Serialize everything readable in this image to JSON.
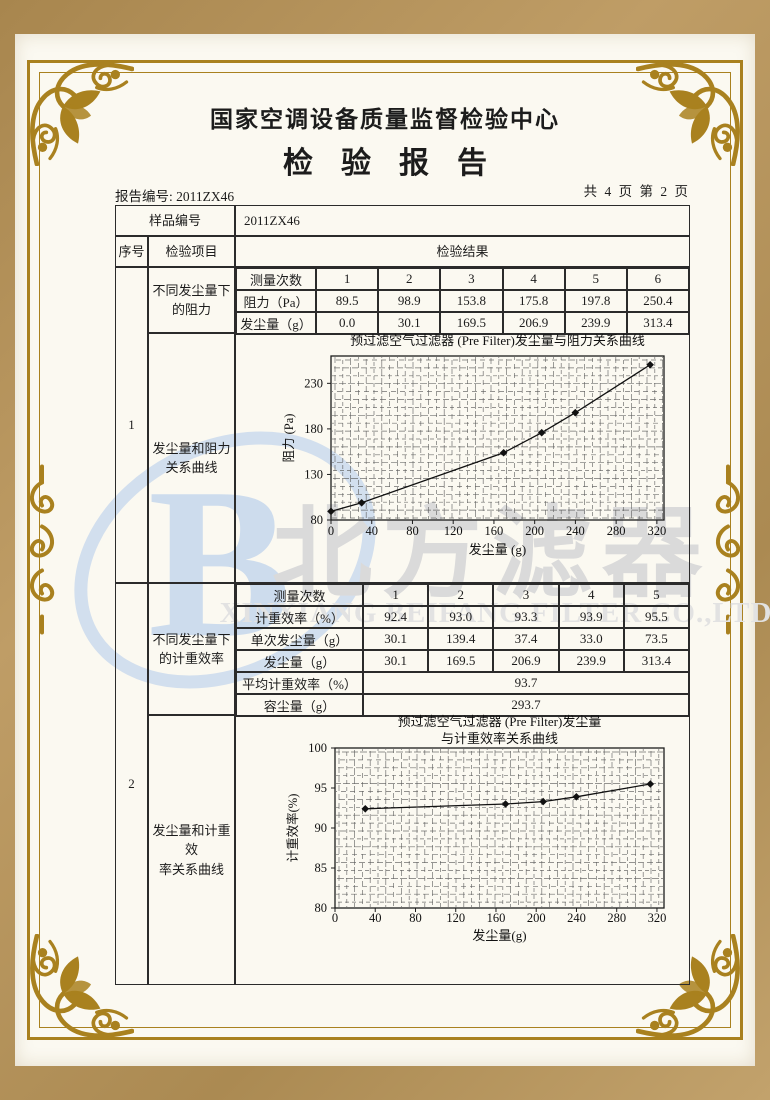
{
  "header": {
    "org": "国家空调设备质量监督检验中心",
    "title": "检验报告"
  },
  "meta": {
    "report_no": "报告编号: 2011ZX46",
    "page_info": "共 4 页 第 2 页"
  },
  "table": {
    "sample_label": "样品编号",
    "sample_value": "2011ZX46",
    "seq_header": "序号",
    "item_header": "检验项目",
    "result_header": "检验结果",
    "sections": [
      {
        "seq": "1",
        "item_top": "不同发尘量下\n的阻力",
        "item_bottom": "发尘量和阻力\n关系曲线"
      },
      {
        "seq": "2",
        "item_top": "不同发尘量下\n的计重效率",
        "item_bottom": "发尘量和计重效\n率关系曲线"
      }
    ],
    "resistance": {
      "rows": [
        {
          "label": "测量次数",
          "values": [
            "1",
            "2",
            "3",
            "4",
            "5",
            "6"
          ]
        },
        {
          "label": "阻力（Pa）",
          "values": [
            "89.5",
            "98.9",
            "153.8",
            "175.8",
            "197.8",
            "250.4"
          ]
        },
        {
          "label": "发尘量（g）",
          "values": [
            "0.0",
            "30.1",
            "169.5",
            "206.9",
            "239.9",
            "313.4"
          ]
        }
      ]
    },
    "efficiency": {
      "rows": [
        {
          "label": "测量次数",
          "values": [
            "1",
            "2",
            "3",
            "4",
            "5"
          ]
        },
        {
          "label": "计重效率（%）",
          "values": [
            "92.4",
            "93.0",
            "93.3",
            "93.9",
            "95.5"
          ]
        },
        {
          "label": "单次发尘量（g）",
          "values": [
            "30.1",
            "139.4",
            "37.4",
            "33.0",
            "73.5"
          ]
        },
        {
          "label": "发尘量（g）",
          "values": [
            "30.1",
            "169.5",
            "206.9",
            "239.9",
            "313.4"
          ]
        }
      ],
      "span_rows": [
        {
          "label": "平均计重效率（%）",
          "value": "93.7"
        },
        {
          "label": "容尘量（g）",
          "value": "293.7"
        }
      ]
    }
  },
  "chart_data": [
    {
      "type": "line",
      "title": "预过滤空气过滤器 (Pre Filter)发尘量与阻力关系曲线",
      "xlabel": "发尘量 (g)",
      "ylabel": "阻力 (Pa)",
      "x": [
        0,
        30.1,
        169.5,
        206.9,
        239.9,
        313.4
      ],
      "y": [
        89.5,
        98.9,
        153.8,
        175.8,
        197.8,
        250.4
      ],
      "xticks": [
        0,
        40,
        80,
        120,
        160,
        200,
        240,
        280,
        320
      ],
      "yticks": [
        80,
        130,
        180,
        230
      ],
      "xlim": [
        0,
        327
      ],
      "ylim": [
        80,
        260
      ],
      "grid": true,
      "marker": "diamond",
      "legend": "none"
    },
    {
      "type": "line",
      "title": "预过滤空气过滤器 (Pre Filter)发尘量",
      "title2": "与计重效率关系曲线",
      "xlabel": "发尘量(g)",
      "ylabel": "计重效率(%)",
      "x": [
        30.1,
        169.5,
        206.9,
        239.9,
        313.4
      ],
      "y": [
        92.4,
        93.0,
        93.3,
        93.9,
        95.5
      ],
      "xticks": [
        0,
        40,
        80,
        120,
        160,
        200,
        240,
        280,
        320
      ],
      "yticks": [
        80,
        85,
        90,
        95,
        100
      ],
      "xlim": [
        0,
        327
      ],
      "ylim": [
        80,
        100
      ],
      "grid": true,
      "marker": "diamond",
      "legend": "none"
    }
  ],
  "watermark": {
    "logo_letter": "B",
    "cn_text": "北方滤器",
    "en_text": "XINXIANG BEIFANG FILTER CO.,LTD"
  },
  "colors": {
    "frame_gold": "#a9811f",
    "border_tan": "#b29258",
    "watermark_blue": "#c9daee",
    "watermark_gray": "#d9d9d9",
    "line_black": "#111111"
  }
}
